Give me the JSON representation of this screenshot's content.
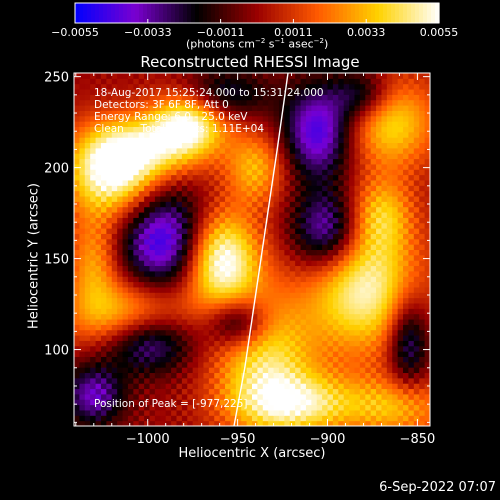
{
  "chart_data": {
    "type": "heatmap",
    "title": "Reconstructed RHESSI Image",
    "xlabel": "Heliocentric X (arcsec)",
    "ylabel": "Heliocentric Y (arcsec)",
    "xlim": [
      -1041,
      -843
    ],
    "ylim": [
      58,
      252
    ],
    "x_ticks": [
      -1000,
      -950,
      -900,
      -850
    ],
    "x_tick_labels": [
      "−1000",
      "−950",
      "−900",
      "−850"
    ],
    "y_ticks": [
      100,
      150,
      200,
      250
    ],
    "y_tick_labels": [
      "100",
      "150",
      "200",
      "250"
    ],
    "colorbar": {
      "range": [
        -0.0055,
        0.0055
      ],
      "ticks": [
        -0.0055,
        -0.0033,
        -0.0011,
        0.0011,
        0.0033,
        0.0055
      ],
      "tick_labels": [
        "−0.0055",
        "−0.0033",
        "−0.0011",
        "0.0011",
        "0.0033",
        "0.0055"
      ],
      "label_parts": [
        "(photons cm",
        "−2",
        " s",
        "−1",
        " asec",
        "−2",
        ")"
      ],
      "colormap": [
        "#0000ff",
        "#7a00d0",
        "#000000",
        "#9a0000",
        "#ff5a00",
        "#ffd200",
        "#ffffff"
      ]
    },
    "annotations": [
      "18-Aug-2017 15:25:24.000 to 15:31:24.000",
      "Detectors: 3F 6F 8F, Att 0",
      "Energy Range: 6.0 - 25.0 keV",
      "Clean     Total Counts: 1.11E+04"
    ],
    "peak_label": "Position of Peak = [-977,225]",
    "peak": [
      -977,
      225
    ],
    "limb_curve": [
      [
        -952,
        58
      ],
      [
        -946,
        90
      ],
      [
        -940,
        130
      ],
      [
        -934,
        170
      ],
      [
        -928,
        210
      ],
      [
        -922,
        252
      ]
    ],
    "blobs": [
      {
        "x": -1020,
        "y": 198,
        "amp": 0.0058,
        "sx": 18,
        "sy": 18
      },
      {
        "x": -1000,
        "y": 210,
        "amp": 0.003,
        "sx": 20,
        "sy": 12
      },
      {
        "x": -960,
        "y": 150,
        "amp": 0.0062,
        "sx": 15,
        "sy": 19
      },
      {
        "x": -977,
        "y": 225,
        "amp": 0.0056,
        "sx": 15,
        "sy": 13
      },
      {
        "x": -940,
        "y": 200,
        "amp": 0.0032,
        "sx": 12,
        "sy": 14
      },
      {
        "x": -1010,
        "y": 118,
        "amp": 0.0042,
        "sx": 24,
        "sy": 14
      },
      {
        "x": -935,
        "y": 95,
        "amp": 0.0042,
        "sx": 20,
        "sy": 26
      },
      {
        "x": -880,
        "y": 135,
        "amp": 0.0052,
        "sx": 22,
        "sy": 26
      },
      {
        "x": -865,
        "y": 225,
        "amp": 0.004,
        "sx": 18,
        "sy": 18
      },
      {
        "x": -915,
        "y": 70,
        "amp": 0.004,
        "sx": 25,
        "sy": 12
      },
      {
        "x": -860,
        "y": 68,
        "amp": 0.003,
        "sx": 20,
        "sy": 12
      },
      {
        "x": -870,
        "y": 175,
        "amp": 0.0028,
        "sx": 12,
        "sy": 14
      },
      {
        "x": -1030,
        "y": 148,
        "amp": 0.0028,
        "sx": 10,
        "sy": 18
      },
      {
        "x": -990,
        "y": 160,
        "amp": -0.0052,
        "sx": 18,
        "sy": 20
      },
      {
        "x": -1000,
        "y": 105,
        "amp": -0.0046,
        "sx": 18,
        "sy": 12
      },
      {
        "x": -905,
        "y": 220,
        "amp": -0.0046,
        "sx": 14,
        "sy": 18
      },
      {
        "x": -900,
        "y": 165,
        "amp": -0.0046,
        "sx": 14,
        "sy": 16
      },
      {
        "x": -1030,
        "y": 75,
        "amp": -0.0036,
        "sx": 12,
        "sy": 12
      },
      {
        "x": -950,
        "y": 115,
        "amp": -0.004,
        "sx": 12,
        "sy": 10
      },
      {
        "x": -960,
        "y": 240,
        "amp": -0.003,
        "sx": 18,
        "sy": 10
      },
      {
        "x": -855,
        "y": 105,
        "amp": -0.0036,
        "sx": 8,
        "sy": 18
      },
      {
        "x": -880,
        "y": 240,
        "amp": -0.003,
        "sx": 12,
        "sy": 10
      }
    ]
  },
  "footer": {
    "date": "6-Sep-2022 07:07"
  }
}
